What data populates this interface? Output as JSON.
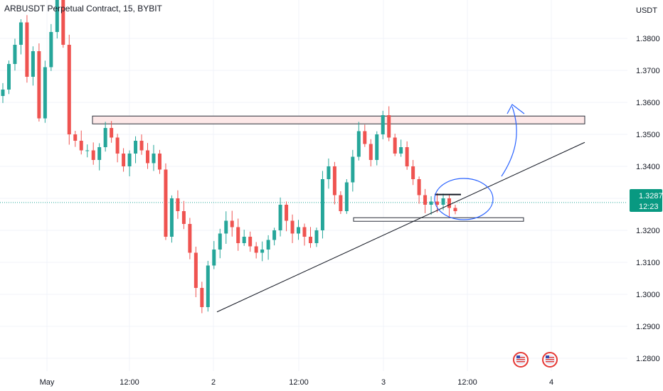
{
  "header": {
    "symbol_title": "ARBUSDT Perpetual Contract, 15, BYBIT",
    "currency": "USDT"
  },
  "price_badge": {
    "price": "1.3287",
    "countdown": "12:23",
    "color": "#089981"
  },
  "colors": {
    "up": "#26a69a",
    "down": "#ef5350",
    "zone_fill": "#fde8e8",
    "zone_stroke": "#2a2e39",
    "annotation_blue": "#2962ff",
    "current_line": "#26a69a"
  },
  "icons": [
    "us-flag-event-icon",
    "us-flag-event-icon"
  ],
  "chart_data": {
    "type": "candlestick",
    "interval": "15",
    "exchange": "BYBIT",
    "ylim": [
      1.276,
      1.392
    ],
    "y_ticks": [
      "1.3800",
      "1.3700",
      "1.3600",
      "1.3500",
      "1.3400",
      "1.3300",
      "1.3200",
      "1.3100",
      "1.3000",
      "1.2900",
      "1.2800"
    ],
    "x_ticks": [
      "May",
      "12:00",
      "2",
      "12:00",
      "3",
      "12:00",
      "4"
    ],
    "current_price": 1.3287,
    "grid": true,
    "annotations": {
      "resistance_zone": [
        1.3535,
        1.3555
      ],
      "support_zone": [
        1.3228,
        1.3235
      ],
      "flag_top": 1.3312,
      "uptrend_line": [
        {
          "x": "May 1 22:30",
          "y": 1.2945
        },
        {
          "x": "May 4 07:00",
          "y": 1.3475
        }
      ],
      "projection": "up"
    },
    "candles_close_sketch": [
      1.364,
      1.372,
      1.378,
      1.385,
      1.368,
      1.376,
      1.355,
      1.371,
      1.382,
      1.392,
      1.378,
      1.35,
      1.348,
      1.345,
      1.345,
      1.342,
      1.346,
      1.352,
      1.349,
      1.344,
      1.34,
      1.344,
      1.348,
      1.345,
      1.341,
      1.344,
      1.339,
      1.318,
      1.33,
      1.326,
      1.322,
      1.313,
      1.302,
      1.296,
      1.309,
      1.314,
      1.319,
      1.323,
      1.321,
      1.316,
      1.318,
      1.315,
      1.313,
      1.314,
      1.317,
      1.32,
      1.328,
      1.323,
      1.319,
      1.321,
      1.318,
      1.316,
      1.32,
      1.336,
      1.34,
      1.331,
      1.326,
      1.335,
      1.343,
      1.351,
      1.347,
      1.342,
      1.35,
      1.356,
      1.349,
      1.344,
      1.346,
      1.34,
      1.336,
      1.331,
      1.328,
      1.329,
      1.328,
      1.33,
      1.327,
      1.326
    ]
  }
}
